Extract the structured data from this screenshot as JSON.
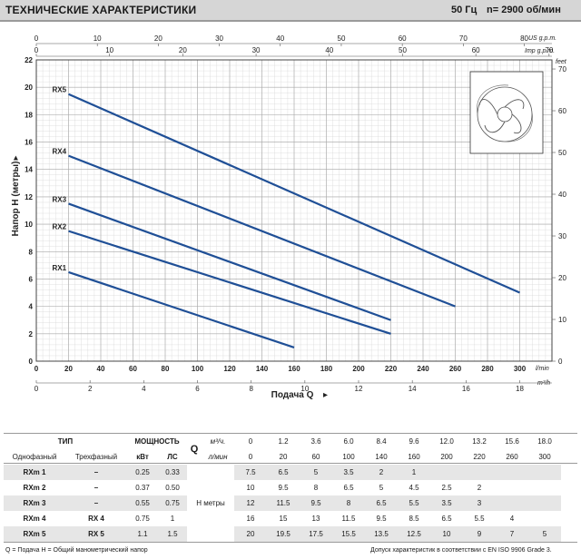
{
  "header": {
    "title": "ТЕХНИЧЕСКИЕ ХАРАКТЕРИСТИКИ",
    "frequency": "50 Гц",
    "speed": "n= 2900 об/мин"
  },
  "chart_data": {
    "type": "line",
    "y_label": "Напор H (метры)",
    "x_label": "Подача Q",
    "x_unit_main": "l/min",
    "x_unit_m3h": "m³/h",
    "top_unit_us": "US g.p.m.",
    "top_unit_imp": "Imp g.p.m.",
    "right_unit": "feet",
    "xlim": [
      0,
      320
    ],
    "ylim": [
      0,
      22
    ],
    "x_ticks": [
      0,
      20,
      40,
      60,
      80,
      100,
      120,
      140,
      160,
      180,
      200,
      220,
      240,
      260,
      280,
      300
    ],
    "y_ticks": [
      0,
      2,
      4,
      6,
      8,
      10,
      12,
      14,
      16,
      18,
      20,
      22
    ],
    "m3h_ticks": [
      0,
      2,
      4,
      6,
      8,
      10,
      12,
      14,
      16,
      18
    ],
    "us_gpm_ticks": [
      0,
      10,
      20,
      30,
      40,
      50,
      60,
      70,
      80
    ],
    "imp_gpm_ticks": [
      0,
      10,
      20,
      30,
      40,
      50,
      60,
      70
    ],
    "feet_ticks": [
      0,
      10,
      20,
      30,
      40,
      50,
      60,
      70
    ],
    "grid": true,
    "series": [
      {
        "name": "RX1",
        "x": [
          20,
          160
        ],
        "y": [
          6.5,
          1.0
        ]
      },
      {
        "name": "RX2",
        "x": [
          20,
          220
        ],
        "y": [
          9.5,
          2.0
        ]
      },
      {
        "name": "RX3",
        "x": [
          20,
          220
        ],
        "y": [
          11.5,
          3.0
        ]
      },
      {
        "name": "RX4",
        "x": [
          20,
          260
        ],
        "y": [
          15.0,
          4.0
        ]
      },
      {
        "name": "RX5",
        "x": [
          20,
          300
        ],
        "y": [
          19.5,
          5.0
        ]
      }
    ]
  },
  "table": {
    "h_tip": "ТИП",
    "h_power": "МОЩНОСТЬ",
    "h_single": "Однофазный",
    "h_three": "Трехфазный",
    "h_kw": "кВт",
    "h_hp": "ЛС",
    "q_label": "Q",
    "unit_m3h": "м³/ч.",
    "unit_lmin": "л/мин",
    "h_label": "H метры",
    "q_m3h": [
      "0",
      "1.2",
      "3.6",
      "6.0",
      "8.4",
      "9.6",
      "12.0",
      "13.2",
      "15.6",
      "18.0"
    ],
    "q_lmin": [
      "0",
      "20",
      "60",
      "100",
      "140",
      "160",
      "200",
      "220",
      "260",
      "300"
    ],
    "rows": [
      {
        "single": "RXm 1",
        "three": "–",
        "kw": "0.25",
        "hp": "0.33",
        "h": [
          "7.5",
          "6.5",
          "5",
          "3.5",
          "2",
          "1",
          "",
          "",
          "",
          ""
        ]
      },
      {
        "single": "RXm 2",
        "three": "–",
        "kw": "0.37",
        "hp": "0.50",
        "h": [
          "10",
          "9.5",
          "8",
          "6.5",
          "5",
          "4.5",
          "2.5",
          "2",
          "",
          ""
        ]
      },
      {
        "single": "RXm 3",
        "three": "–",
        "kw": "0.55",
        "hp": "0.75",
        "h": [
          "12",
          "11.5",
          "9.5",
          "8",
          "6.5",
          "5.5",
          "3.5",
          "3",
          "",
          ""
        ]
      },
      {
        "single": "RXm 4",
        "three": "RX 4",
        "kw": "0.75",
        "hp": "1",
        "h": [
          "16",
          "15",
          "13",
          "11.5",
          "9.5",
          "8.5",
          "6.5",
          "5.5",
          "4",
          ""
        ]
      },
      {
        "single": "RXm 5",
        "three": "RX 5",
        "kw": "1.1",
        "hp": "1.5",
        "h": [
          "20",
          "19.5",
          "17.5",
          "15.5",
          "13.5",
          "12.5",
          "10",
          "9",
          "7",
          "5"
        ]
      }
    ]
  },
  "footer": {
    "left": "Q = Подача  H = Общий манометрический напор",
    "right": "Допуск характеристик в соответствии с EN ISO 9906 Grade 3."
  }
}
